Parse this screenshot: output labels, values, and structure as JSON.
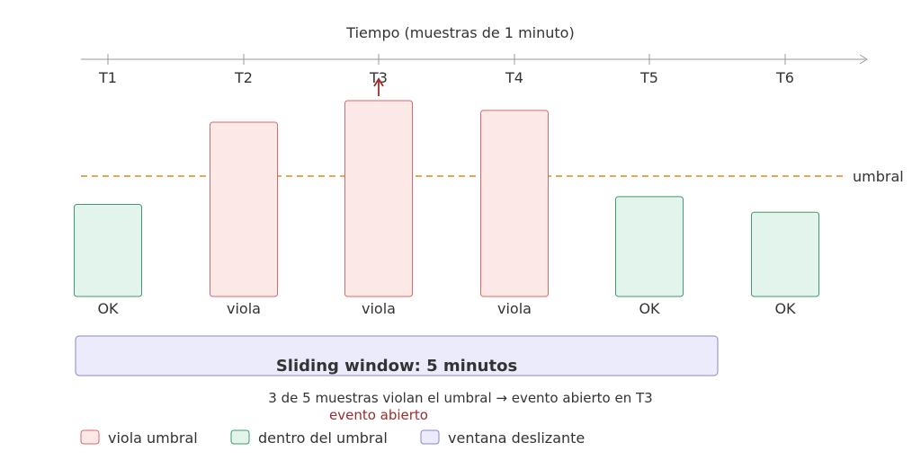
{
  "axis": {
    "title": "Tiempo (muestras de 1 minuto)",
    "ticks": [
      "T1",
      "T2",
      "T3",
      "T4",
      "T5",
      "T6"
    ]
  },
  "threshold": {
    "label": "umbral",
    "color": "#d98b1e"
  },
  "samples": [
    {
      "tick": "T1",
      "status": "OK",
      "level": 0.47
    },
    {
      "tick": "T2",
      "status": "viola",
      "level": 0.89
    },
    {
      "tick": "T3",
      "status": "viola",
      "level": 1.0
    },
    {
      "tick": "T4",
      "status": "viola",
      "level": 0.95
    },
    {
      "tick": "T5",
      "status": "OK",
      "level": 0.51
    },
    {
      "tick": "T6",
      "status": "OK",
      "level": 0.43
    }
  ],
  "window": {
    "title": "Sliding window: 5 minutos"
  },
  "summary": "3 de 5 muestras violan el umbral → evento abierto en T3",
  "event_label": "evento abierto",
  "legend": [
    {
      "label": "viola umbral",
      "fill": "#fde8e8",
      "stroke": "#d46a6a"
    },
    {
      "label": "dentro del umbral",
      "fill": "#e3f4ec",
      "stroke": "#3f9a6e"
    },
    {
      "label": "ventana deslizante",
      "fill": "#ebebfb",
      "stroke": "#8a86cf"
    }
  ],
  "colors": {
    "violate_fill": "#fde8e8",
    "violate_stroke": "#d46a6a",
    "ok_fill": "#e3f4ec",
    "ok_stroke": "#3f9a6e",
    "window_fill": "#ebebfb",
    "window_stroke": "#8a86cf",
    "event": "#9b2c2c",
    "axis": "#999999"
  }
}
